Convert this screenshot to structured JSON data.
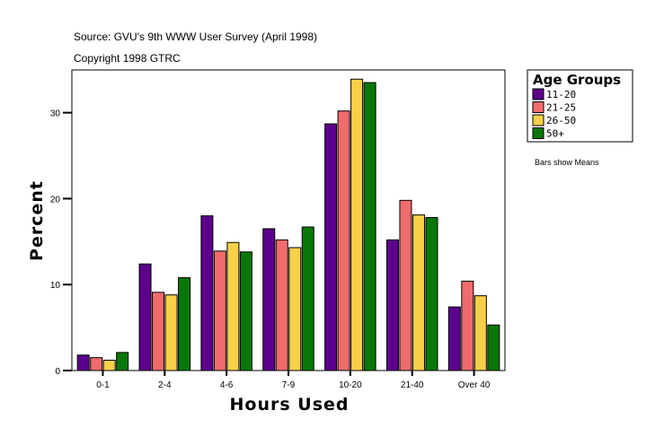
{
  "chart_data": {
    "type": "bar",
    "title": "Source: GVU's 9th WWW User Survey (April 1998)",
    "subtitle": "Copyright 1998 GTRC",
    "xlabel": "Hours Used",
    "ylabel": "Percent",
    "ylim": [
      0,
      35
    ],
    "yticks": [
      0,
      10,
      20,
      30
    ],
    "grid": false,
    "legend_title": "Age Groups",
    "legend_placement": "right",
    "note": "Bars show Means",
    "categories": [
      "0-1",
      "2-4",
      "4-6",
      "7-9",
      "10-20",
      "21-40",
      "Over 40"
    ],
    "series": [
      {
        "name": "11-20",
        "color": "#5c008c",
        "values": [
          1.8,
          12.4,
          18.0,
          16.5,
          28.7,
          15.2,
          7.4
        ]
      },
      {
        "name": "21-25",
        "color": "#f06c6c",
        "values": [
          1.5,
          9.1,
          13.9,
          15.2,
          30.2,
          19.8,
          10.4
        ]
      },
      {
        "name": "26-50",
        "color": "#f8d048",
        "values": [
          1.2,
          8.8,
          14.9,
          14.3,
          33.9,
          18.1,
          8.7
        ]
      },
      {
        "name": "50+",
        "color": "#087808",
        "values": [
          2.1,
          10.8,
          13.8,
          16.7,
          33.5,
          17.8,
          5.3
        ]
      }
    ]
  }
}
